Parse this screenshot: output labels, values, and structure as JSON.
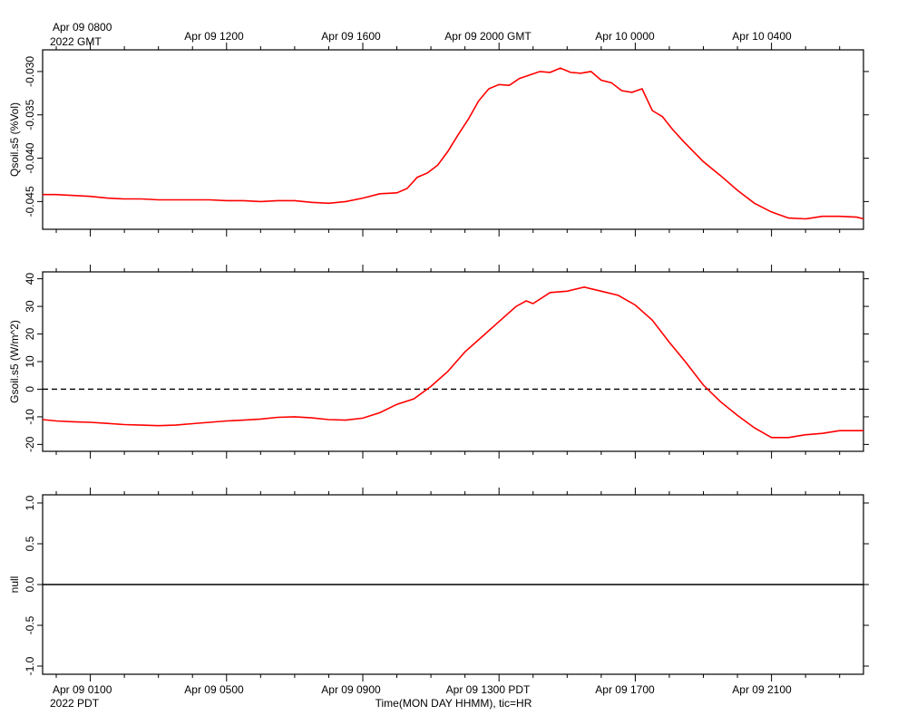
{
  "top_axis": {
    "first_label": "Apr 09 0800",
    "first_sublabel": "2022 GMT",
    "labels": [
      "Apr 09 1200",
      "Apr 09 1600",
      "Apr 09 2000 GMT",
      "Apr 10 0000",
      "Apr 10 0400"
    ]
  },
  "bottom_axis": {
    "first_label": "Apr 09 0100",
    "first_sublabel": "2022 PDT",
    "labels": [
      "Apr 09 0500",
      "Apr 09 0900",
      "Apr 09 1300 PDT",
      "Apr 09 1700",
      "Apr 09 2100"
    ],
    "title": "Time(MON DAY HHMM), tic=HR"
  },
  "colors": {
    "series": "#ff0000",
    "axes": "#000000",
    "zero_line": "#000000"
  },
  "chart_data": [
    {
      "type": "line",
      "ylabel": "Qsoil.s5 (%Vol)",
      "x_unit": "hours after Apr 09 0100 PDT",
      "xlim": [
        -1.4,
        22.7
      ],
      "ylim": [
        -0.0482,
        -0.0275
      ],
      "yticks": [
        -0.045,
        -0.04,
        -0.035,
        -0.03
      ],
      "ytick_labels": [
        "-0.045",
        "-0.040",
        "-0.035",
        "-0.030"
      ],
      "grid": false,
      "series": [
        {
          "x": [
            -1.4,
            -1.0,
            -0.5,
            0.0,
            0.5,
            1.0,
            1.5,
            2.0,
            2.5,
            3.0,
            3.5,
            4.0,
            4.5,
            5.0,
            5.5,
            6.0,
            6.5,
            7.0,
            7.5,
            8.0,
            8.5,
            9.0,
            9.3,
            9.6,
            9.9,
            10.2,
            10.5,
            10.8,
            11.1,
            11.4,
            11.7,
            12.0,
            12.3,
            12.6,
            12.9,
            13.2,
            13.5,
            13.8,
            14.1,
            14.4,
            14.7,
            15.0,
            15.3,
            15.6,
            15.9,
            16.2,
            16.5,
            16.8,
            17.1,
            17.4,
            17.7,
            18.0,
            18.5,
            19.0,
            19.5,
            20.0,
            20.5,
            21.0,
            21.5,
            22.0,
            22.5,
            22.7
          ],
          "y": [
            -0.0442,
            -0.0442,
            -0.0443,
            -0.0444,
            -0.0446,
            -0.0447,
            -0.0447,
            -0.0448,
            -0.0448,
            -0.0448,
            -0.0448,
            -0.0449,
            -0.0449,
            -0.045,
            -0.0449,
            -0.0449,
            -0.0451,
            -0.0452,
            -0.045,
            -0.0446,
            -0.0441,
            -0.044,
            -0.0435,
            -0.0422,
            -0.0417,
            -0.0408,
            -0.0392,
            -0.0373,
            -0.0355,
            -0.0334,
            -0.032,
            -0.0315,
            -0.0316,
            -0.0308,
            -0.0304,
            -0.03,
            -0.0301,
            -0.0296,
            -0.0301,
            -0.0302,
            -0.03,
            -0.031,
            -0.0313,
            -0.0322,
            -0.0324,
            -0.032,
            -0.0345,
            -0.0352,
            -0.0367,
            -0.038,
            -0.0392,
            -0.0404,
            -0.042,
            -0.0437,
            -0.0452,
            -0.0462,
            -0.0469,
            -0.047,
            -0.0467,
            -0.0467,
            -0.0468,
            -0.047
          ]
        }
      ]
    },
    {
      "type": "line",
      "ylabel": "Gsoil.s5 (W/m^2)",
      "x_unit": "hours after Apr 09 0100 PDT",
      "xlim": [
        -1.4,
        22.7
      ],
      "ylim": [
        -22.5,
        42.5
      ],
      "yticks": [
        -20,
        -10,
        0,
        10,
        20,
        30,
        40
      ],
      "ytick_labels": [
        "-20",
        "-10",
        "0",
        "10",
        "20",
        "30",
        "40"
      ],
      "zero_line": true,
      "grid": false,
      "series": [
        {
          "x": [
            -1.4,
            -1.0,
            -0.5,
            0.0,
            0.5,
            1.0,
            1.5,
            2.0,
            2.5,
            3.0,
            3.5,
            4.0,
            4.5,
            5.0,
            5.5,
            6.0,
            6.5,
            7.0,
            7.5,
            8.0,
            8.5,
            9.0,
            9.5,
            10.0,
            10.5,
            11.0,
            11.5,
            12.0,
            12.5,
            12.8,
            13.0,
            13.5,
            14.0,
            14.5,
            15.0,
            15.5,
            16.0,
            16.5,
            17.0,
            17.5,
            18.0,
            18.5,
            19.0,
            19.5,
            20.0,
            20.5,
            21.0,
            21.5,
            22.0,
            22.7
          ],
          "y": [
            -11.0,
            -11.5,
            -11.8,
            -12.0,
            -12.4,
            -12.8,
            -13.0,
            -13.2,
            -13.0,
            -12.5,
            -12.0,
            -11.5,
            -11.2,
            -10.8,
            -10.2,
            -10.0,
            -10.4,
            -11.0,
            -11.2,
            -10.5,
            -8.5,
            -5.5,
            -3.5,
            1.0,
            6.5,
            13.5,
            19.0,
            24.5,
            30.0,
            32.0,
            31.0,
            35.0,
            35.5,
            37.0,
            35.5,
            34.0,
            30.5,
            25.0,
            17.0,
            9.5,
            1.5,
            -4.5,
            -9.5,
            -14.0,
            -17.5,
            -17.5,
            -16.5,
            -16.0,
            -15.0,
            -15.0
          ]
        }
      ]
    },
    {
      "type": "line",
      "ylabel": "null",
      "x_unit": "hours after Apr 09 0100 PDT",
      "xlim": [
        -1.4,
        22.7
      ],
      "ylim": [
        -1.1,
        1.1
      ],
      "yticks": [
        -1.0,
        -0.5,
        0.0,
        0.5,
        1.0
      ],
      "ytick_labels": [
        "-1.0",
        "-0.5",
        "0.0",
        "0.5",
        "1.0"
      ],
      "grid": false,
      "series": [
        {
          "x": [
            -1.4,
            22.7
          ],
          "y": [
            0.0,
            0.0
          ]
        }
      ]
    }
  ]
}
